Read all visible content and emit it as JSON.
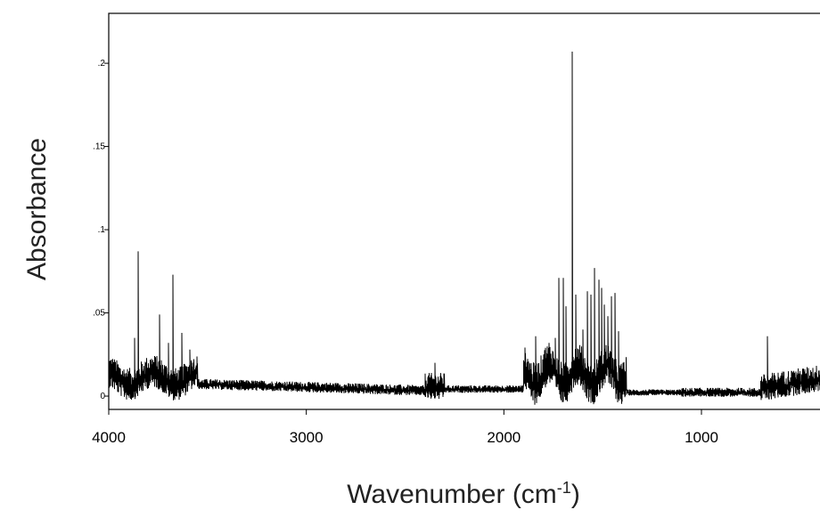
{
  "chart_data": {
    "type": "line",
    "title": "",
    "xlabel": "Wavenumber (cm",
    "xlabel_sup": "-1",
    "xlabel_tail": ")",
    "ylabel": "Absorbance",
    "xlim": [
      4000,
      400
    ],
    "x_reversed": true,
    "ylim": [
      -0.008,
      0.23
    ],
    "x_ticks": [
      {
        "value": 4000,
        "label": "4000"
      },
      {
        "value": 3000,
        "label": "3000"
      },
      {
        "value": 2000,
        "label": "2000"
      },
      {
        "value": 1000,
        "label": "1000"
      }
    ],
    "y_ticks": [
      {
        "value": 0,
        "label": "0"
      },
      {
        "value": 0.05,
        "label": ".05"
      },
      {
        "value": 0.1,
        "label": ".1"
      },
      {
        "value": 0.15,
        "label": ".15"
      },
      {
        "value": 0.2,
        "label": ".2"
      }
    ],
    "grid": false,
    "line_color": "#000000",
    "series": [
      {
        "name": "",
        "peaks": [
          {
            "x": 3853,
            "y": 0.087
          },
          {
            "x": 3870,
            "y": 0.035
          },
          {
            "x": 3745,
            "y": 0.049
          },
          {
            "x": 3675,
            "y": 0.073
          },
          {
            "x": 3700,
            "y": 0.032
          },
          {
            "x": 3630,
            "y": 0.038
          },
          {
            "x": 3590,
            "y": 0.028
          },
          {
            "x": 2350,
            "y": 0.02
          },
          {
            "x": 1890,
            "y": 0.02
          },
          {
            "x": 1840,
            "y": 0.036
          },
          {
            "x": 1800,
            "y": 0.025
          },
          {
            "x": 1790,
            "y": 0.029
          },
          {
            "x": 1770,
            "y": 0.032
          },
          {
            "x": 1740,
            "y": 0.035
          },
          {
            "x": 1720,
            "y": 0.071
          },
          {
            "x": 1700,
            "y": 0.071
          },
          {
            "x": 1684,
            "y": 0.054
          },
          {
            "x": 1653,
            "y": 0.207
          },
          {
            "x": 1635,
            "y": 0.061
          },
          {
            "x": 1600,
            "y": 0.04
          },
          {
            "x": 1577,
            "y": 0.063
          },
          {
            "x": 1559,
            "y": 0.061
          },
          {
            "x": 1540,
            "y": 0.077
          },
          {
            "x": 1520,
            "y": 0.07
          },
          {
            "x": 1505,
            "y": 0.065
          },
          {
            "x": 1490,
            "y": 0.055
          },
          {
            "x": 1473,
            "y": 0.048
          },
          {
            "x": 1457,
            "y": 0.06
          },
          {
            "x": 1436,
            "y": 0.062
          },
          {
            "x": 1418,
            "y": 0.039
          },
          {
            "x": 1395,
            "y": 0.02
          },
          {
            "x": 668,
            "y": 0.036
          }
        ]
      }
    ]
  }
}
